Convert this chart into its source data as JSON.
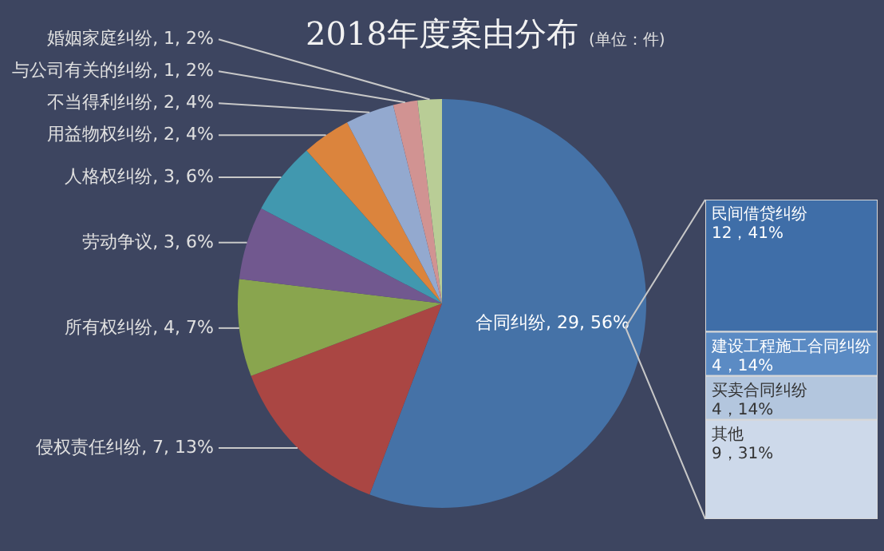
{
  "chart_data": [
    {
      "type": "pie",
      "title": "2018年度案由分布",
      "subtitle": "(单位：件)",
      "categories": [
        "合同纠纷",
        "侵权责任纠纷",
        "所有权纠纷",
        "劳动争议",
        "人格权纠纷",
        "用益物权纠纷",
        "不当得利纠纷",
        "与公司有关的纠纷",
        "婚姻家庭纠纷"
      ],
      "values": [
        29,
        7,
        4,
        3,
        3,
        2,
        2,
        1,
        1
      ],
      "value_labels": [
        "29, 56%",
        "7, 13%",
        "4, 7%",
        "3, 6%",
        "3, 6%",
        "2, 4%",
        "2, 4%",
        "1, 2%",
        "1, 2%"
      ],
      "colors": [
        "#4572a7",
        "#aa4643",
        "#89a54e",
        "#71588f",
        "#4198af",
        "#db843d",
        "#93a9cf",
        "#d19392",
        "#b9cd96"
      ]
    },
    {
      "type": "other",
      "categories": [
        "民间借贷纠纷",
        "建设工程施工合同纠纷",
        "买卖合同纠纷",
        "其他"
      ],
      "values": [
        12,
        4,
        4,
        9
      ],
      "value_labels": [
        "12，41%",
        "4，14%",
        "4，14%",
        "9，31%"
      ],
      "colors": [
        "#3f6ea8",
        "#5b8bc4",
        "#b3c6de",
        "#cdd9ea"
      ]
    }
  ]
}
